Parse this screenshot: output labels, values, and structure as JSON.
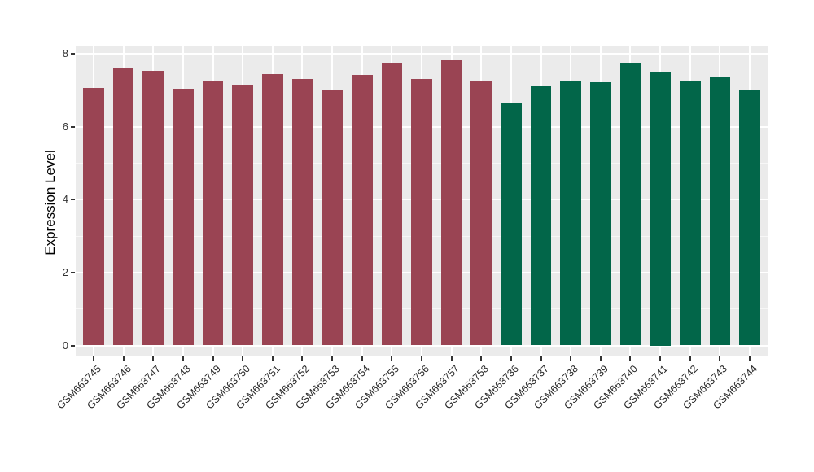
{
  "chart_data": {
    "type": "bar",
    "title": "",
    "xlabel": "",
    "ylabel": "Expression Level",
    "ylim": [
      0,
      8
    ],
    "yticks": [
      0,
      2,
      4,
      6,
      8
    ],
    "yticks_minor": [
      1,
      3,
      5,
      7
    ],
    "grid": "white major and minor horizontal lines plus vertical category lines on grey panel",
    "legend": "none",
    "bar_groups": [
      {
        "name": "maroon-group",
        "color": "#9A4453"
      },
      {
        "name": "green-group",
        "color": "#026649"
      }
    ],
    "bars": [
      {
        "label": "GSM663745",
        "value": 7.07,
        "group": 0
      },
      {
        "label": "GSM663746",
        "value": 7.61,
        "group": 0
      },
      {
        "label": "GSM663747",
        "value": 7.54,
        "group": 0
      },
      {
        "label": "GSM663748",
        "value": 7.05,
        "group": 0
      },
      {
        "label": "GSM663749",
        "value": 7.27,
        "group": 0
      },
      {
        "label": "GSM663750",
        "value": 7.15,
        "group": 0
      },
      {
        "label": "GSM663751",
        "value": 7.44,
        "group": 0
      },
      {
        "label": "GSM663752",
        "value": 7.3,
        "group": 0
      },
      {
        "label": "GSM663753",
        "value": 7.02,
        "group": 0
      },
      {
        "label": "GSM663754",
        "value": 7.42,
        "group": 0
      },
      {
        "label": "GSM663755",
        "value": 7.76,
        "group": 0
      },
      {
        "label": "GSM663756",
        "value": 7.32,
        "group": 0
      },
      {
        "label": "GSM663757",
        "value": 7.83,
        "group": 0
      },
      {
        "label": "GSM663758",
        "value": 7.27,
        "group": 0
      },
      {
        "label": "GSM663736",
        "value": 6.67,
        "group": 1
      },
      {
        "label": "GSM663737",
        "value": 7.11,
        "group": 1
      },
      {
        "label": "GSM663738",
        "value": 7.27,
        "group": 1
      },
      {
        "label": "GSM663739",
        "value": 7.23,
        "group": 1
      },
      {
        "label": "GSM663740",
        "value": 7.76,
        "group": 1
      },
      {
        "label": "GSM663741",
        "value": 7.5,
        "group": 1
      },
      {
        "label": "GSM663742",
        "value": 7.24,
        "group": 1
      },
      {
        "label": "GSM663743",
        "value": 7.36,
        "group": 1
      },
      {
        "label": "GSM663744",
        "value": 7.0,
        "group": 1
      }
    ]
  },
  "colors": {
    "figure_background": "#FFFFFF",
    "panel_background": "#EBEBEB",
    "grid_major": "#FFFFFF",
    "grid_minor": "rgba(255,255,255,0.6)",
    "tick_mark": "#333333",
    "axis_text": "#333333",
    "axis_title": "#000000"
  }
}
